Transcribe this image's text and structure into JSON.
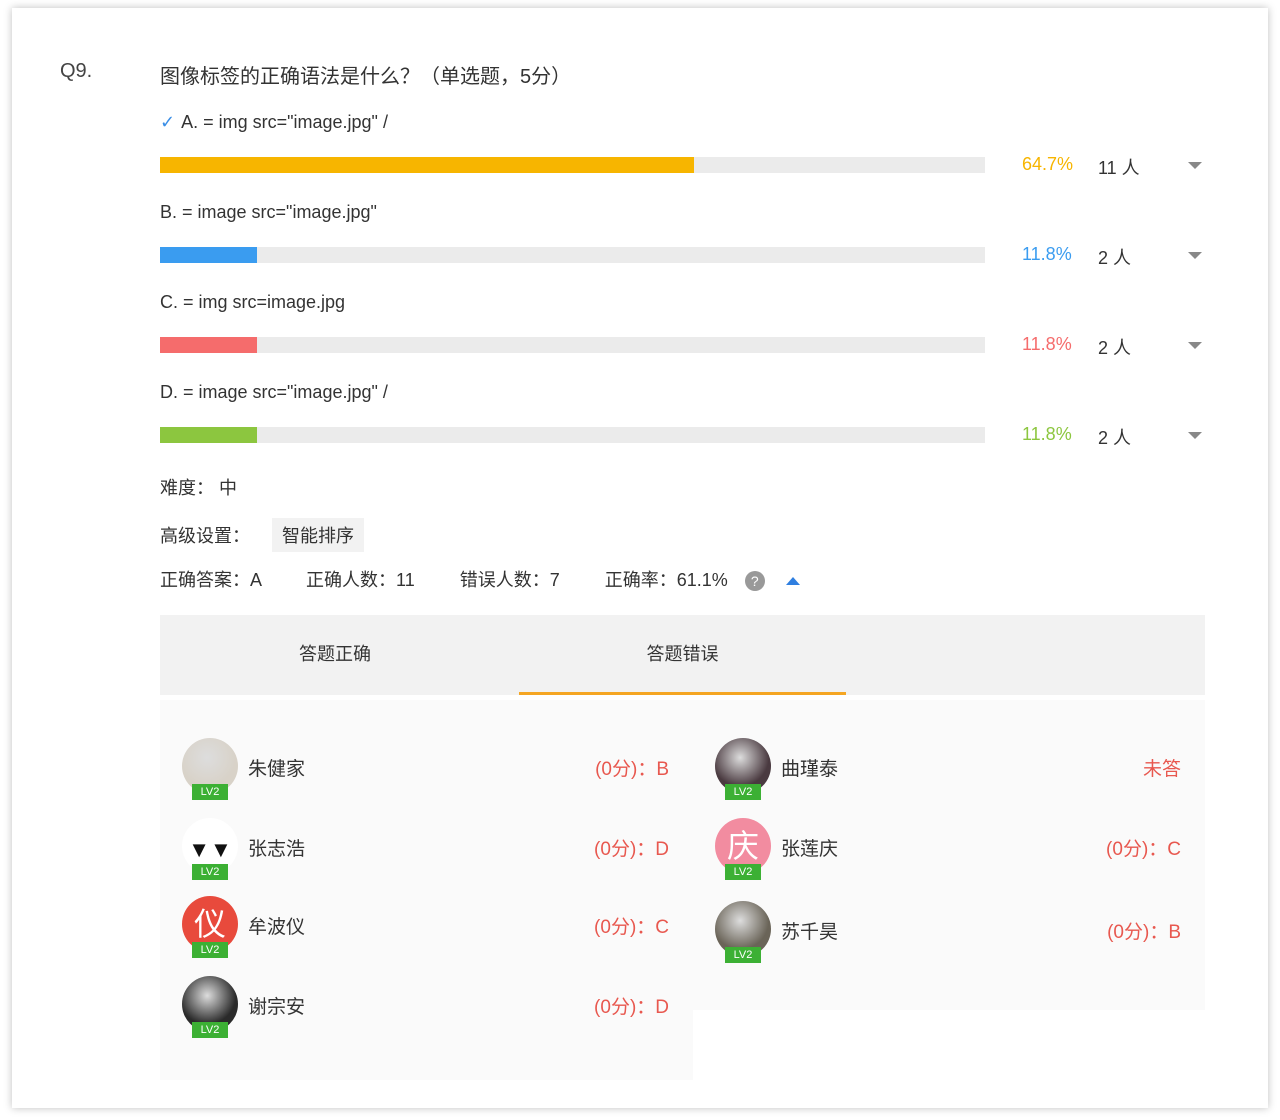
{
  "question": {
    "number": "Q9.",
    "title": "图像标签的正确语法是什么？（单选题，5分）"
  },
  "options": [
    {
      "label": "A. = img src=\"image.jpg\" /",
      "correct": true,
      "percent": "64.7%",
      "fraction": 0.647,
      "count": "11 人",
      "color": "#f7b500"
    },
    {
      "label": "B. = image src=\"image.jpg\"",
      "correct": false,
      "percent": "11.8%",
      "fraction": 0.118,
      "count": "2 人",
      "color": "#3a9cf0"
    },
    {
      "label": "C. = img src=image.jpg",
      "correct": false,
      "percent": "11.8%",
      "fraction": 0.118,
      "count": "2 人",
      "color": "#f56c6c"
    },
    {
      "label": "D. = image src=\"image.jpg\" /",
      "correct": false,
      "percent": "11.8%",
      "fraction": 0.118,
      "count": "2 人",
      "color": "#8cc63f"
    }
  ],
  "difficulty": "难度：  中",
  "advanced": {
    "label": "高级设置：",
    "tag": "智能排序"
  },
  "stats": {
    "answer": "正确答案：A",
    "correct_count": "正确人数：11",
    "wrong_count": "错误人数：7",
    "rate": "正确率：61.1%",
    "help": "?"
  },
  "tabs": [
    {
      "label": "答题正确",
      "active": false
    },
    {
      "label": "答题错误",
      "active": true
    }
  ],
  "students_left": [
    {
      "name": "朱健家",
      "answer": "(0分)：B",
      "avatar": "photo",
      "bg": "#d8d2c8"
    },
    {
      "name": "张志浩",
      "answer": "(0分)：D",
      "avatar": "face",
      "bg": "#ffffff"
    },
    {
      "name": "牟波仪",
      "answer": "(0分)：C",
      "avatar": "仪",
      "bg": "#e84a3c"
    },
    {
      "name": "谢宗安",
      "answer": "(0分)：D",
      "avatar": "photo",
      "bg": "#2a2a2a"
    }
  ],
  "students_right": [
    {
      "name": "曲瑾泰",
      "answer": "未答",
      "avatar": "photo",
      "bg": "#4a3a40"
    },
    {
      "name": "张莲庆",
      "answer": "(0分)：C",
      "avatar": "庆",
      "bg": "#f28ca0"
    },
    {
      "name": "苏千昊",
      "answer": "(0分)：B",
      "avatar": "photo",
      "bg": "#6a6458"
    }
  ],
  "level_badge": "LV2"
}
